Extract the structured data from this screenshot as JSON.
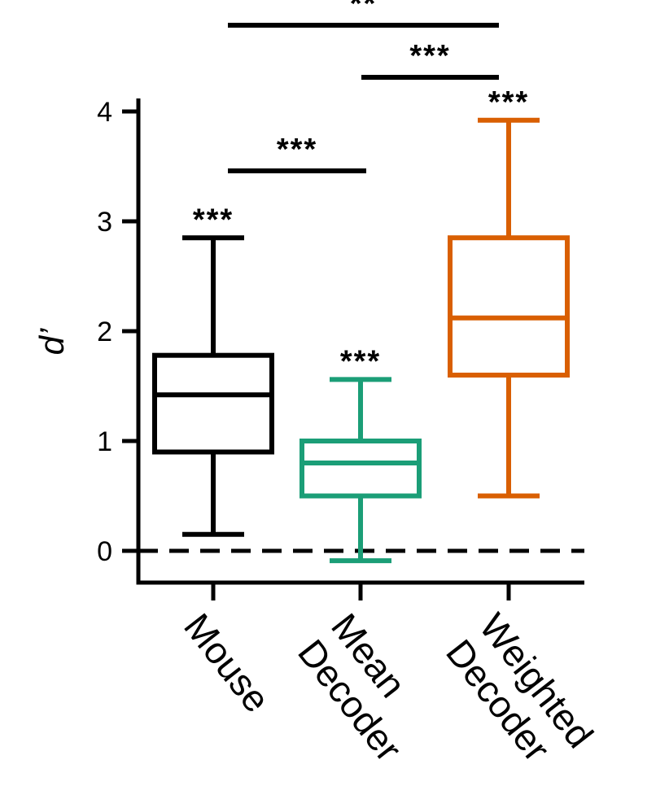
{
  "chart_data": {
    "type": "box",
    "title": "",
    "xlabel": "",
    "ylabel": "d’",
    "ylim": [
      -0.3,
      4.1
    ],
    "yticks": [
      0,
      1,
      2,
      3,
      4
    ],
    "ytick_labels": [
      "0",
      "1",
      "2",
      "3",
      "4"
    ],
    "categories": [
      {
        "label_lines": [
          "Mouse"
        ]
      },
      {
        "label_lines": [
          "Mean",
          "Decoder"
        ]
      },
      {
        "label_lines": [
          "Weighted",
          "Decoder"
        ]
      }
    ],
    "boxes": [
      {
        "min": 0.15,
        "q1": 0.9,
        "median": 1.42,
        "q3": 1.78,
        "max": 2.85,
        "color": "#000000"
      },
      {
        "min": -0.09,
        "q1": 0.5,
        "median": 0.8,
        "q3": 1.0,
        "max": 1.56,
        "color": "#1b9e77"
      },
      {
        "min": 0.5,
        "q1": 1.6,
        "median": 2.12,
        "q3": 2.85,
        "max": 3.92,
        "color": "#d95f02"
      }
    ],
    "reference_line": {
      "y": 0,
      "style": "dashed",
      "color": "#000000"
    },
    "significance_marks": [
      {
        "box": 0,
        "text": "***"
      },
      {
        "box": 1,
        "text": "***"
      },
      {
        "box": 2,
        "text": "***"
      }
    ],
    "significance_brackets": [
      {
        "from": 0,
        "to": 1,
        "text": "***"
      },
      {
        "from": 1,
        "to": 2,
        "text": "***"
      },
      {
        "from": 0,
        "to": 2,
        "text": "**"
      }
    ]
  }
}
